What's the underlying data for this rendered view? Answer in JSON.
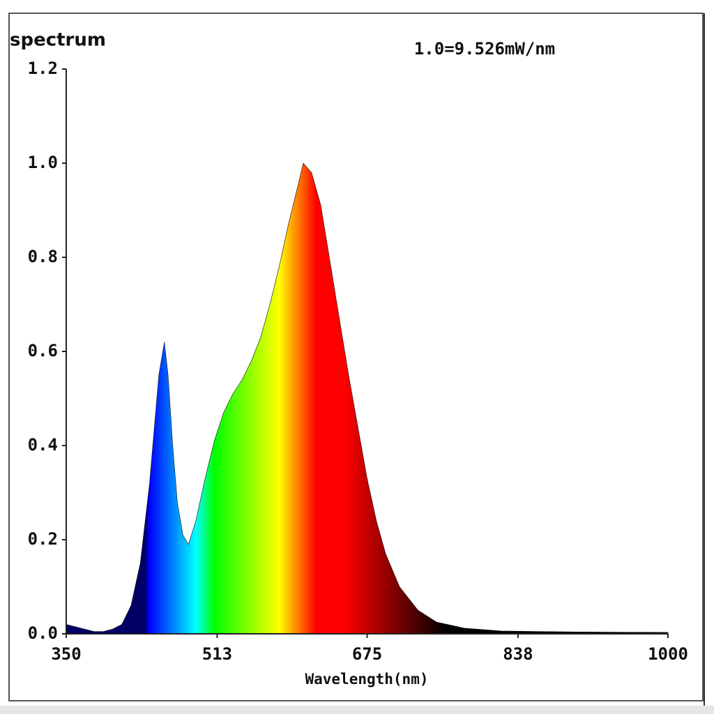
{
  "chart_data": {
    "type": "area",
    "title": "spectrum",
    "annotation": "1.0=9.526mW/nm",
    "x_label": "Wavelength(nm)",
    "x": [
      350,
      360,
      370,
      380,
      390,
      400,
      410,
      420,
      430,
      440,
      450,
      456,
      460,
      465,
      470,
      476,
      482,
      490,
      500,
      510,
      520,
      530,
      540,
      550,
      560,
      570,
      580,
      590,
      600,
      606,
      615,
      625,
      635,
      645,
      655,
      665,
      675,
      685,
      695,
      710,
      730,
      750,
      780,
      820,
      900,
      1000
    ],
    "values": [
      0.02,
      0.015,
      0.01,
      0.005,
      0.005,
      0.01,
      0.02,
      0.06,
      0.15,
      0.32,
      0.55,
      0.62,
      0.55,
      0.4,
      0.28,
      0.21,
      0.19,
      0.24,
      0.33,
      0.41,
      0.47,
      0.51,
      0.54,
      0.58,
      0.63,
      0.7,
      0.78,
      0.87,
      0.95,
      1.0,
      0.98,
      0.91,
      0.79,
      0.67,
      0.55,
      0.44,
      0.33,
      0.24,
      0.17,
      0.1,
      0.05,
      0.025,
      0.012,
      0.006,
      0.004,
      0.003
    ],
    "xlim": [
      350,
      1000
    ],
    "xticks": [
      350,
      513,
      675,
      838,
      1000
    ],
    "ylim": [
      0,
      1.2
    ],
    "yticks": [
      {
        "value": 0,
        "label": "0.0"
      },
      0.2,
      0.4,
      0.6,
      0.8,
      {
        "value": 1,
        "label": "1.0"
      },
      1.2
    ]
  }
}
